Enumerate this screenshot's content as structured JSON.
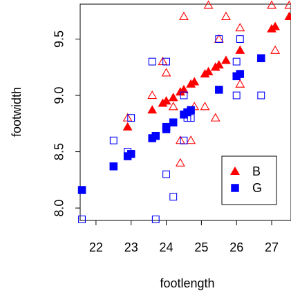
{
  "chart_data": {
    "type": "scatter",
    "title": "",
    "xlabel": "footlength",
    "ylabel": "footwidth",
    "xlim": [
      21.55,
      27.55
    ],
    "ylim": [
      7.89,
      9.81
    ],
    "x_ticks": [
      22,
      23,
      24,
      25,
      26,
      27
    ],
    "y_ticks": [
      8.0,
      8.5,
      9.0,
      9.5
    ],
    "x_tick_labels": [
      "22",
      "23",
      "24",
      "25",
      "26",
      "27"
    ],
    "y_tick_labels": [
      "8.0",
      "8.5",
      "9.0",
      "9.5"
    ],
    "legend": {
      "position": "bottom-right",
      "entries": [
        {
          "label": "B",
          "color": "#ff0000",
          "shape": "triangle"
        },
        {
          "label": "G",
          "color": "#0000ff",
          "shape": "square"
        }
      ]
    },
    "series": [
      {
        "name": "B",
        "marker": "open-triangle",
        "color": "#ff0000",
        "points": [
          [
            22.9,
            8.8
          ],
          [
            23.6,
            9.0
          ],
          [
            23.9,
            9.3
          ],
          [
            24.0,
            9.2
          ],
          [
            24.2,
            8.9
          ],
          [
            24.4,
            8.4
          ],
          [
            24.4,
            8.6
          ],
          [
            24.5,
            9.7
          ],
          [
            24.7,
            8.6
          ],
          [
            24.8,
            8.9
          ],
          [
            25.1,
            8.9
          ],
          [
            25.2,
            9.8
          ],
          [
            25.4,
            8.8
          ],
          [
            25.5,
            9.5
          ],
          [
            25.7,
            9.7
          ],
          [
            26.1,
            9.6
          ],
          [
            26.1,
            9.1
          ],
          [
            27.0,
            9.8
          ],
          [
            27.1,
            9.4
          ],
          [
            27.5,
            9.8
          ]
        ]
      },
      {
        "name": "B",
        "marker": "filled-triangle",
        "color": "#ff0000",
        "points": [
          [
            22.9,
            8.72
          ],
          [
            23.6,
            8.87
          ],
          [
            23.9,
            8.93
          ],
          [
            24.0,
            8.95
          ],
          [
            24.2,
            8.98
          ],
          [
            24.4,
            9.03
          ],
          [
            24.5,
            9.05
          ],
          [
            24.7,
            9.1
          ],
          [
            24.8,
            9.12
          ],
          [
            25.1,
            9.19
          ],
          [
            25.2,
            9.21
          ],
          [
            25.4,
            9.25
          ],
          [
            25.5,
            9.27
          ],
          [
            25.7,
            9.31
          ],
          [
            26.1,
            9.4
          ],
          [
            27.0,
            9.59
          ],
          [
            27.1,
            9.61
          ],
          [
            27.5,
            9.7
          ]
        ]
      },
      {
        "name": "G",
        "marker": "open-square",
        "color": "#0000ff",
        "points": [
          [
            21.6,
            7.9
          ],
          [
            22.5,
            8.6
          ],
          [
            22.9,
            8.5
          ],
          [
            23.0,
            8.8
          ],
          [
            23.6,
            9.3
          ],
          [
            23.7,
            7.9
          ],
          [
            24.0,
            8.3
          ],
          [
            24.0,
            9.3
          ],
          [
            24.2,
            8.1
          ],
          [
            24.5,
            8.6
          ],
          [
            24.5,
            9.0
          ],
          [
            24.6,
            8.8
          ],
          [
            24.7,
            8.8
          ],
          [
            25.5,
            9.5
          ],
          [
            26.0,
            9.0
          ],
          [
            26.0,
            9.3
          ],
          [
            26.1,
            9.5
          ],
          [
            26.7,
            9.0
          ]
        ]
      },
      {
        "name": "G",
        "marker": "filled-square",
        "color": "#0000ff",
        "points": [
          [
            21.6,
            8.16
          ],
          [
            22.5,
            8.37
          ],
          [
            22.9,
            8.46
          ],
          [
            23.0,
            8.48
          ],
          [
            23.6,
            8.62
          ],
          [
            23.7,
            8.64
          ],
          [
            24.0,
            8.7
          ],
          [
            24.0,
            8.72
          ],
          [
            24.2,
            8.76
          ],
          [
            24.5,
            8.83
          ],
          [
            24.6,
            8.85
          ],
          [
            24.7,
            8.87
          ],
          [
            25.5,
            9.05
          ],
          [
            26.0,
            9.17
          ],
          [
            26.1,
            9.19
          ],
          [
            26.7,
            9.33
          ]
        ]
      }
    ]
  }
}
